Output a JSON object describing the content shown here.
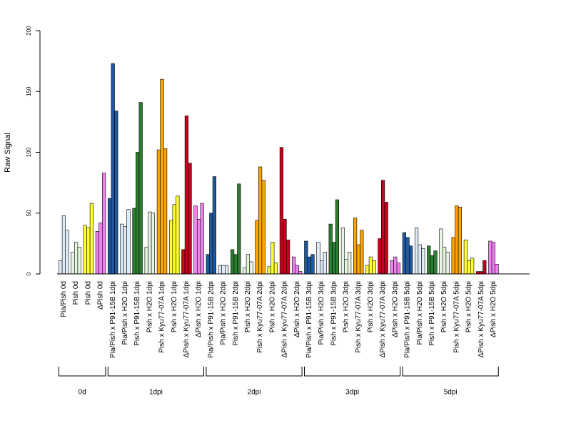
{
  "chart_data": {
    "type": "bar",
    "title": "",
    "xlabel": "",
    "ylabel": "Raw Signal",
    "ylim": [
      0,
      200
    ],
    "yticks": [
      0,
      50,
      100,
      150,
      200
    ],
    "grid": false,
    "legend": "none",
    "categories": [
      {
        "label": "Pia/Pish 0d",
        "color": "#deebf7",
        "values": [
          11,
          48,
          36
        ]
      },
      {
        "label": "Pish 0d",
        "color": "#e5f5e0",
        "values": [
          18,
          26,
          22
        ]
      },
      {
        "label": "Pish 0d",
        "color": "#ffff33",
        "values": [
          40,
          38,
          58
        ]
      },
      {
        "label": "ΔPish 0d",
        "color": "#ee82ee",
        "values": [
          35,
          42,
          83
        ]
      },
      {
        "label": "Pia/Pish x P91-15B 1dpi",
        "color": "#1f5aa0",
        "values": [
          62,
          173,
          134
        ]
      },
      {
        "label": "Pia/Pish x H2O 1dpi",
        "color": "#deebf7",
        "values": [
          41,
          39,
          53
        ]
      },
      {
        "label": "Pish x P91-15B 1dpi",
        "color": "#2e7d32",
        "values": [
          54,
          100,
          141
        ]
      },
      {
        "label": "Pish x H2O 1dpi",
        "color": "#e5f5e0",
        "values": [
          22,
          51,
          50
        ]
      },
      {
        "label": "Pish x Kyu77-07A 1dpi",
        "color": "#ffa500",
        "values": [
          102,
          160,
          103
        ]
      },
      {
        "label": "Pish x H2O 1dpi",
        "color": "#ffff33",
        "values": [
          44,
          57,
          64
        ]
      },
      {
        "label": "ΔPish x Kyu77-07A 1dpi",
        "color": "#c8001e",
        "values": [
          20,
          130,
          91
        ]
      },
      {
        "label": "ΔPish x H2O 1dpi",
        "color": "#ee82ee",
        "values": [
          56,
          45,
          58
        ]
      },
      {
        "label": "Pia/Pish x P91-15B 2dpi",
        "color": "#1f5aa0",
        "values": [
          16,
          50,
          80
        ]
      },
      {
        "label": "Pia/Pish x H2O 2dpi",
        "color": "#deebf7",
        "values": [
          7,
          7,
          7
        ]
      },
      {
        "label": "Pish x P91-15B 2dpi",
        "color": "#2e7d32",
        "values": [
          20,
          16,
          74
        ]
      },
      {
        "label": "Pish x H2O 2dpi",
        "color": "#e5f5e0",
        "values": [
          5,
          16,
          10
        ]
      },
      {
        "label": "Pish x Kyu77-07A 2dpi",
        "color": "#ffa500",
        "values": [
          44,
          88,
          77
        ]
      },
      {
        "label": "Pish x H2O 2dpi",
        "color": "#ffff33",
        "values": [
          6,
          26,
          9
        ]
      },
      {
        "label": "ΔPish x Kyu77-07A 2dpi",
        "color": "#c8001e",
        "values": [
          104,
          45,
          28
        ]
      },
      {
        "label": "ΔPish x H2O 2dpi",
        "color": "#ee82ee",
        "values": [
          14,
          7,
          2
        ]
      },
      {
        "label": "Pia/Pish x P91-15B 3dpi",
        "color": "#1f5aa0",
        "values": [
          27,
          14,
          16
        ]
      },
      {
        "label": "Pia/Pish x H2O 3dpi",
        "color": "#deebf7",
        "values": [
          26,
          11,
          18
        ]
      },
      {
        "label": "Pish x P91-15B 3dpi",
        "color": "#2e7d32",
        "values": [
          41,
          26,
          61
        ]
      },
      {
        "label": "Pish x H2O 3dpi",
        "color": "#e5f5e0",
        "values": [
          38,
          12,
          18
        ]
      },
      {
        "label": "Pish x Kyu77-07A 3dpi",
        "color": "#ffa500",
        "values": [
          46,
          24,
          36
        ]
      },
      {
        "label": "Pish x H2O 3dpi",
        "color": "#ffff33",
        "values": [
          7,
          14,
          11
        ]
      },
      {
        "label": "ΔPish x Kyu77-07A 3dpi",
        "color": "#c8001e",
        "values": [
          29,
          77,
          59
        ]
      },
      {
        "label": "ΔPish x H2O 3dpi",
        "color": "#ee82ee",
        "values": [
          11,
          14,
          9
        ]
      },
      {
        "label": "Pia/Pish x P91-15B 5dpi",
        "color": "#1f5aa0",
        "values": [
          34,
          30,
          23
        ]
      },
      {
        "label": "Pia/Pish x H2O 5dpi",
        "color": "#deebf7",
        "values": [
          38,
          24,
          21
        ]
      },
      {
        "label": "Pish x P91-15B 5dpi",
        "color": "#2e7d32",
        "values": [
          23,
          15,
          19
        ]
      },
      {
        "label": "Pish x H2O 5dpi",
        "color": "#e5f5e0",
        "values": [
          37,
          22,
          18
        ]
      },
      {
        "label": "Pish x Kyu77-07A 5dpi",
        "color": "#ffa500",
        "values": [
          30,
          56,
          55
        ]
      },
      {
        "label": "Pish x H2O 5dpi",
        "color": "#ffff33",
        "values": [
          28,
          11,
          13
        ]
      },
      {
        "label": "ΔPish x Kyu77-07A 5dpi",
        "color": "#c8001e",
        "values": [
          2,
          2,
          11
        ]
      },
      {
        "label": "ΔPish x H2O 5dpi",
        "color": "#ee82ee",
        "values": [
          27,
          26,
          8
        ]
      }
    ],
    "groups": [
      {
        "label": "0d",
        "start": 0,
        "end": 3
      },
      {
        "label": "1dpi",
        "start": 4,
        "end": 11
      },
      {
        "label": "2dpi",
        "start": 12,
        "end": 19
      },
      {
        "label": "3dpi",
        "start": 20,
        "end": 27
      },
      {
        "label": "5dpi",
        "start": 28,
        "end": 35
      }
    ]
  }
}
